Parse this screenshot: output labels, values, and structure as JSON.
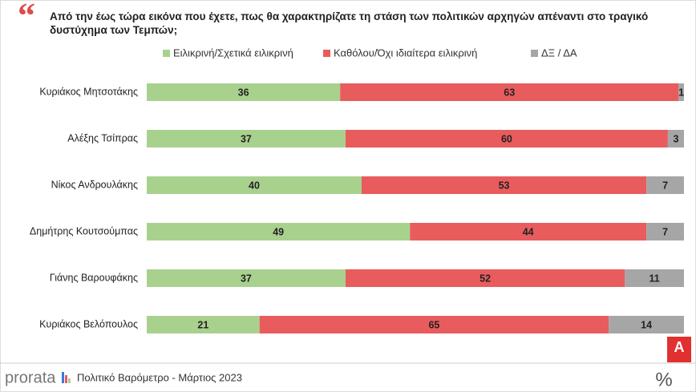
{
  "chart_data": {
    "type": "stacked_bar_horizontal",
    "title": "Από την έως τώρα εικόνα που έχετε, πως θα χαρακτηρίζατε τη στάση των πολιτικών αρχηγών απέναντι στο τραγικό δυστύχημα των Τεμπών;",
    "categories": [
      "Κυριάκος Μητσοτάκης",
      "Αλέξης Τσίπρας",
      "Νίκος Ανδρουλάκης",
      "Δημήτρης Κουτσούμπας",
      "Γιάνης Βαρουφάκης",
      "Κυριάκος Βελόπουλος"
    ],
    "series": [
      {
        "name": "Ειλικρινή/Σχετικά ειλικρινή",
        "color": "#a9d18e",
        "values": [
          36,
          37,
          40,
          49,
          37,
          21
        ]
      },
      {
        "name": "Καθόλου/Όχι ιδιαίτερα ειλικρινή",
        "color": "#e85c5e",
        "values": [
          63,
          60,
          53,
          44,
          52,
          65
        ]
      },
      {
        "name": "ΔΞ / ΔΑ",
        "color": "#a6a6a6",
        "values": [
          1,
          3,
          7,
          7,
          11,
          14
        ]
      }
    ],
    "legend": "top",
    "source": "prorata",
    "footer": "Πολιτικό Βαρόμετρο - Μάρτιος 2023"
  }
}
